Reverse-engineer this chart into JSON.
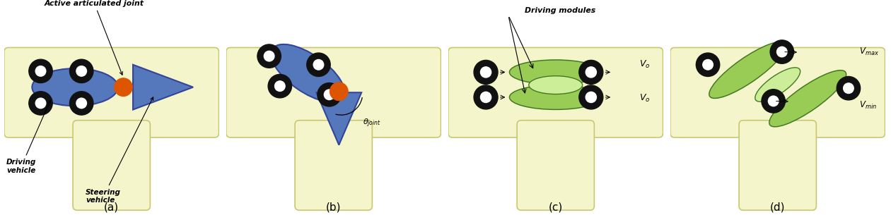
{
  "bg_color": "#ffffff",
  "corridor_fill": "#f5f5cc",
  "corridor_border": "#c8c870",
  "wheel_outer": "#111111",
  "wheel_inner": "#ffffff",
  "body_blue_fill": "#5577bb",
  "body_blue_edge": "#334499",
  "joint_orange": "#dd5500",
  "module_green_fill": "#99cc55",
  "module_green_edge": "#447722",
  "module_mid_fill": "#ccee99",
  "labels": [
    "(a)",
    "(b)",
    "(c)",
    "(d)"
  ],
  "text_active": "Active articulated joint",
  "text_driving": "Driving\nvehicle",
  "text_steering": "Steering\nvehicle",
  "text_modules": "Driving modules",
  "text_theta": "$\\theta_{joint}$",
  "text_vo1": "$V_o$",
  "text_vo2": "$V_o$",
  "text_vmax": "$V_{max}$",
  "text_vmin": "$V_{min}$",
  "figw": 12.6,
  "figh": 3.05
}
